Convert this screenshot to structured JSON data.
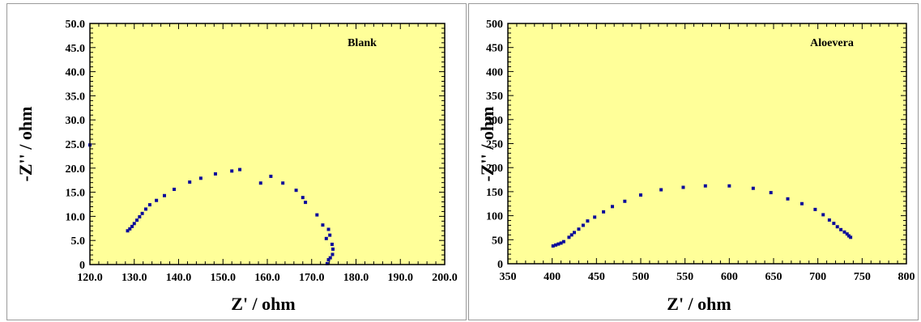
{
  "colors": {
    "plot_background": "#ffff99",
    "marker": "#0a0a9a",
    "axis": "#000000"
  },
  "chart_data": [
    {
      "type": "scatter",
      "annotation": "Blank",
      "xlabel": "Z' / ohm",
      "ylabel": "-Z'' / ohm",
      "xlim": [
        120.0,
        200.0
      ],
      "ylim": [
        0,
        50.0
      ],
      "xticks": [
        "120.0",
        "130.0",
        "140.0",
        "150.0",
        "160.0",
        "170.0",
        "180.0",
        "190.0",
        "200.0"
      ],
      "yticks": [
        "0",
        "5.0",
        "10.0",
        "15.0",
        "20.0",
        "25.0",
        "30.0",
        "35.0",
        "40.0",
        "45.0",
        "50.0"
      ],
      "grid": false,
      "series": [
        {
          "x": [
            120.0,
            128.5,
            129.0,
            129.5,
            130.0,
            130.6,
            131.2,
            131.8,
            132.6,
            133.5,
            135.0,
            136.8,
            139.0,
            142.5,
            145.0,
            148.3,
            152.0,
            153.8,
            158.5,
            160.8,
            163.5,
            166.5,
            168.0,
            168.6,
            171.2,
            172.5,
            173.3,
            173.8,
            174.1,
            174.6,
            174.8,
            174.7,
            174.2,
            173.8,
            173.5
          ],
          "y": [
            24.8,
            7.0,
            7.4,
            7.9,
            8.5,
            9.2,
            9.9,
            10.6,
            11.5,
            12.4,
            13.3,
            14.3,
            15.6,
            17.1,
            17.9,
            18.8,
            19.4,
            19.7,
            16.9,
            18.3,
            16.9,
            15.4,
            13.9,
            12.9,
            10.3,
            8.2,
            5.4,
            7.3,
            6.1,
            4.2,
            3.2,
            2.1,
            1.4,
            1.0,
            0.2
          ]
        }
      ]
    },
    {
      "type": "scatter",
      "annotation": "Aloevera",
      "xlabel": "Z' / ohm",
      "ylabel": "-Z'' / ohm",
      "xlim": [
        350,
        800
      ],
      "ylim": [
        0,
        500
      ],
      "xticks": [
        "350",
        "400",
        "450",
        "500",
        "550",
        "600",
        "650",
        "700",
        "750",
        "800"
      ],
      "yticks": [
        "0",
        "50",
        "100",
        "150",
        "200",
        "250",
        "300",
        "350",
        "400",
        "450",
        "500"
      ],
      "grid": false,
      "series": [
        {
          "x": [
            401,
            404,
            407,
            410,
            413,
            419,
            422,
            425,
            430,
            435,
            440,
            448,
            458,
            468,
            482,
            500,
            523,
            548,
            573,
            600,
            627,
            647,
            666,
            682,
            697,
            706,
            713,
            718,
            722,
            726,
            730,
            733,
            735,
            737
          ],
          "y": [
            37,
            39,
            41,
            43,
            46,
            55,
            60,
            65,
            72,
            80,
            89,
            97,
            108,
            119,
            130,
            143,
            154,
            159,
            162,
            162,
            157,
            148,
            135,
            125,
            113,
            102,
            91,
            84,
            77,
            71,
            66,
            62,
            58,
            55
          ]
        }
      ]
    }
  ]
}
